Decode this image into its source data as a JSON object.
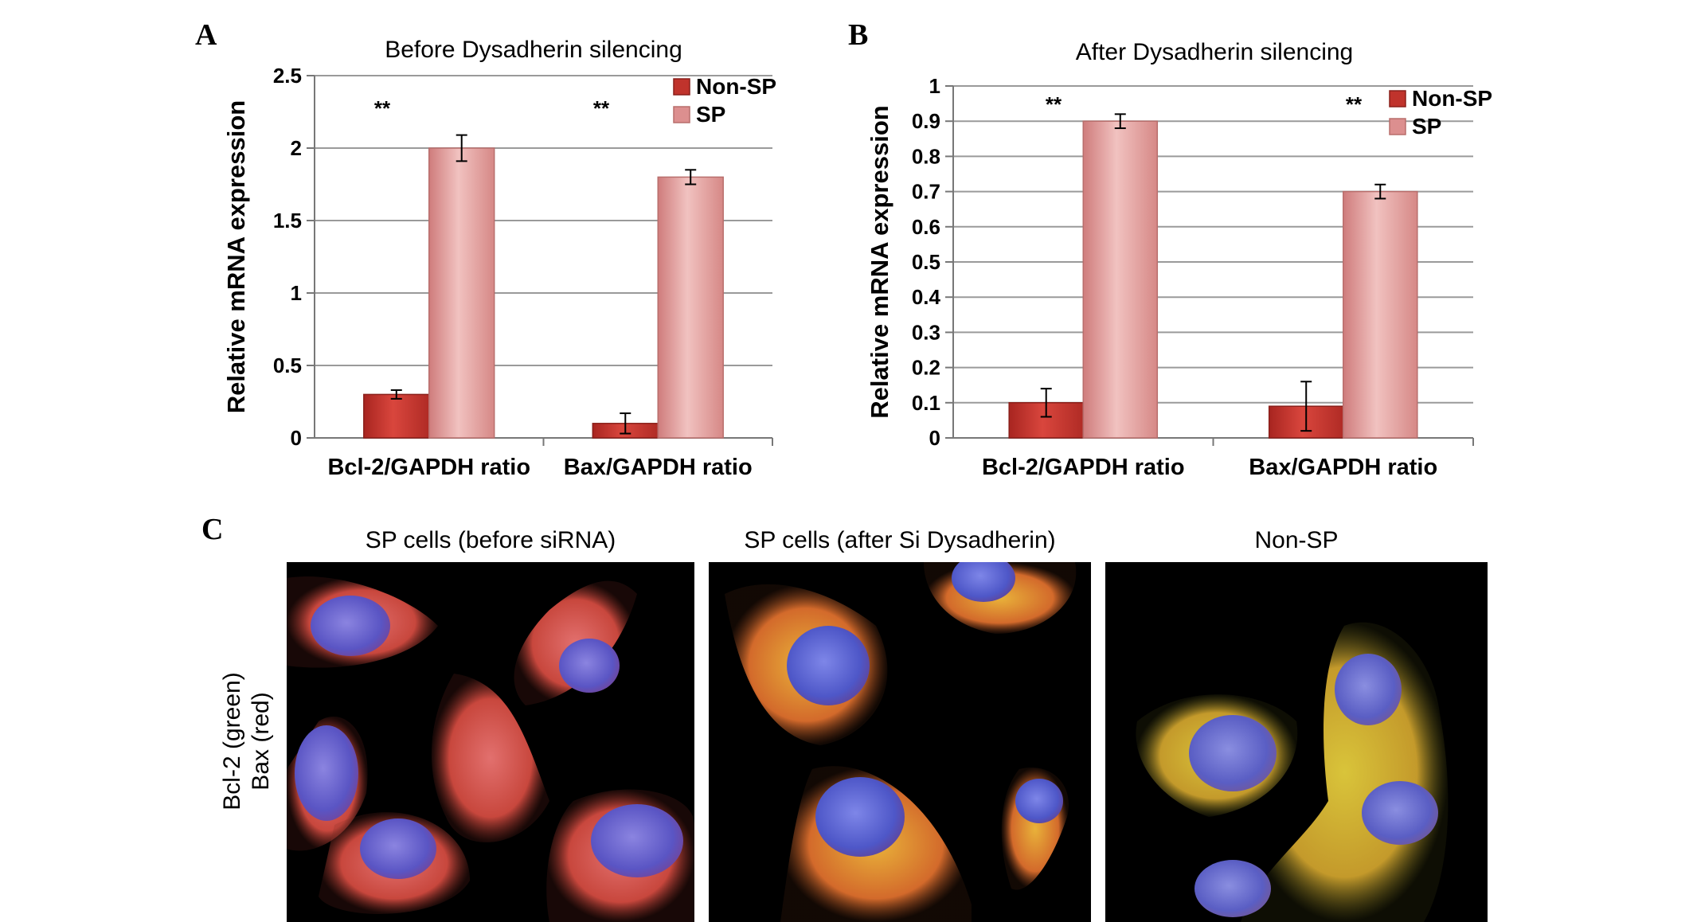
{
  "panels": {
    "a": "A",
    "b": "B",
    "c": "C"
  },
  "chart_data": [
    {
      "type": "bar",
      "title": "Before Dysadherin silencing",
      "ylabel": "Relative mRNA expression",
      "xlabel": "",
      "categories": [
        "Bcl-2/GAPDH ratio",
        "Bax/GAPDH ratio"
      ],
      "series": [
        {
          "name": "Non-SP",
          "values": [
            0.3,
            0.1
          ],
          "errors": [
            0.03,
            0.07
          ],
          "color": "#c0332c"
        },
        {
          "name": "SP",
          "values": [
            2.0,
            1.8
          ],
          "errors": [
            0.09,
            0.05
          ],
          "color": "#dc8f8f"
        }
      ],
      "yticks": [
        "0",
        "0.5",
        "1",
        "1.5",
        "2",
        "2.5"
      ],
      "ylim": [
        0,
        2.5
      ],
      "significance": [
        "**",
        "**"
      ],
      "grid": true,
      "legend": "top-right"
    },
    {
      "type": "bar",
      "title": "After Dysadherin silencing",
      "ylabel": "Relative mRNA expression",
      "xlabel": "",
      "categories": [
        "Bcl-2/GAPDH ratio",
        "Bax/GAPDH ratio"
      ],
      "series": [
        {
          "name": "Non-SP",
          "values": [
            0.1,
            0.09
          ],
          "errors": [
            0.04,
            0.07
          ],
          "color": "#c0332c"
        },
        {
          "name": "SP",
          "values": [
            0.9,
            0.7
          ],
          "errors": [
            0.02,
            0.02
          ],
          "color": "#dc8f8f"
        }
      ],
      "yticks": [
        "0",
        "0.1",
        "0.2",
        "0.3",
        "0.4",
        "0.5",
        "0.6",
        "0.7",
        "0.8",
        "0.9",
        "1"
      ],
      "ylim": [
        0,
        1
      ],
      "significance": [
        "**",
        "**"
      ],
      "grid": true,
      "legend": "top-right"
    }
  ],
  "micrographs": {
    "side_label_line1": "Bcl-2 (green)",
    "side_label_line2": "Bax (red)",
    "images": [
      {
        "title": "SP cells (before siRNA)",
        "tone": "red"
      },
      {
        "title": "SP cells (after Si Dysadherin)",
        "tone": "orange"
      },
      {
        "title": "Non-SP",
        "tone": "yellow"
      }
    ]
  }
}
